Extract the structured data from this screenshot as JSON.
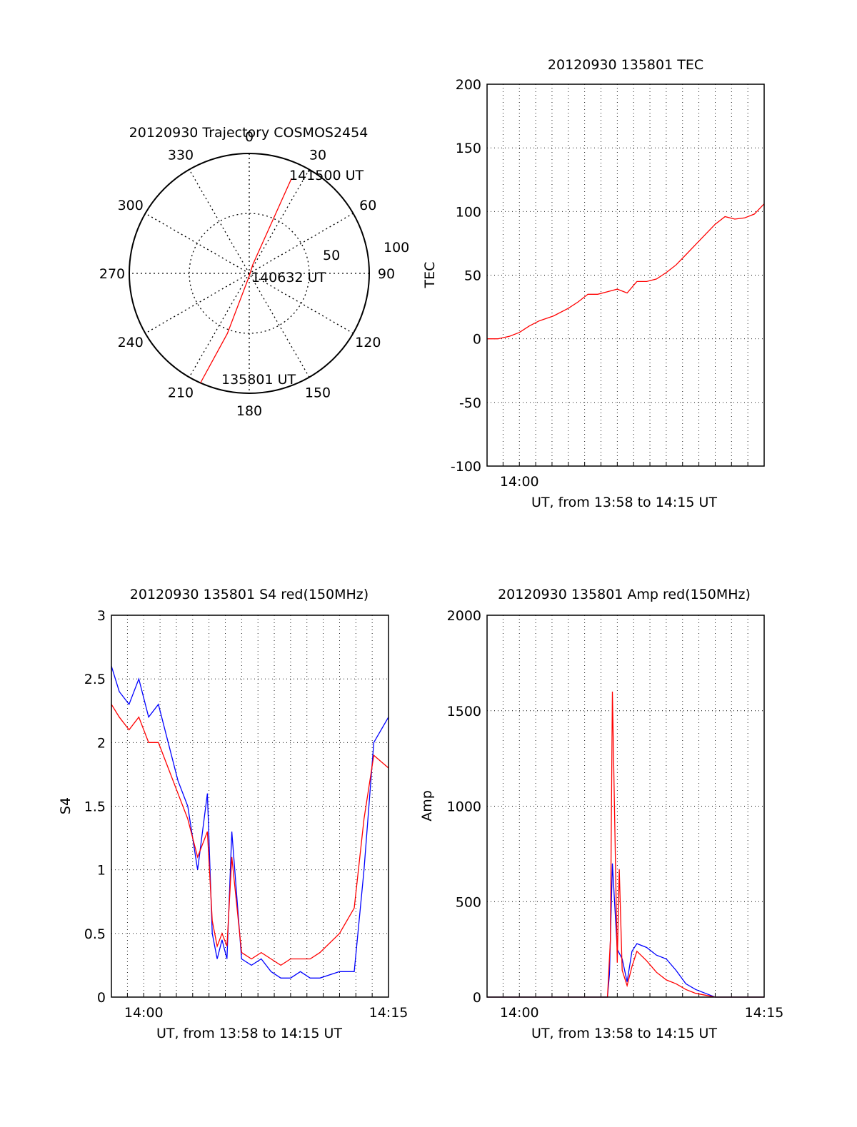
{
  "colors": {
    "red": "#ff0000",
    "blue": "#0000ff",
    "axis": "#000000",
    "grid": "#000000"
  },
  "chart_data": [
    {
      "id": "trajectory",
      "type": "polar",
      "title": "20120930 Trajectory COSMOS2454",
      "angle_labels": [
        "0",
        "30",
        "60",
        "90",
        "120",
        "150",
        "180",
        "210",
        "240",
        "270",
        "300",
        "330"
      ],
      "radial_labels": [
        "50",
        "100"
      ],
      "grid": true,
      "series": [
        {
          "color": "#ff0000",
          "points": [
            {
              "azimuth": 204,
              "elevation": 0
            },
            {
              "azimuth": 200,
              "elevation": 42
            },
            {
              "azimuth": 180,
              "elevation": 88
            },
            {
              "azimuth": 22,
              "elevation": 83
            },
            {
              "azimuth": 24,
              "elevation": 12
            }
          ]
        }
      ],
      "annotations": [
        "141500 UT",
        "140632 UT",
        "135801 UT"
      ]
    },
    {
      "id": "tec",
      "type": "line",
      "title": "20120930 135801 TEC",
      "ylabel": "TEC",
      "xlabel": "UT, from 13:58 to 14:15 UT",
      "xlim": [
        13.967,
        14.25
      ],
      "ylim": [
        -100,
        200
      ],
      "yticks": [
        200,
        150,
        100,
        50,
        0,
        -50,
        -100
      ],
      "xtick_labels": [
        "14:00"
      ],
      "grid": true,
      "series": [
        {
          "color": "#ff0000",
          "x": [
            13.967,
            13.978,
            13.99,
            14.0,
            14.01,
            14.02,
            14.035,
            14.05,
            14.06,
            14.07,
            14.08,
            14.09,
            14.1,
            14.11,
            14.12,
            14.13,
            14.14,
            14.15,
            14.16,
            14.17,
            14.18,
            14.19,
            14.2,
            14.21,
            14.22,
            14.23,
            14.24,
            14.25
          ],
          "y": [
            0,
            0,
            2,
            5,
            10,
            14,
            18,
            24,
            29,
            35,
            35,
            37,
            39,
            36,
            45,
            45,
            47,
            52,
            58,
            66,
            74,
            82,
            90,
            96,
            94,
            95,
            98,
            106
          ]
        }
      ]
    },
    {
      "id": "s4",
      "type": "line",
      "title": "20120930 135801 S4 red(150MHz)",
      "ylabel": "S4",
      "xlabel": "UT, from 13:58 to 14:15 UT",
      "xlim": [
        13.967,
        14.25
      ],
      "ylim": [
        0,
        3
      ],
      "yticks": [
        3,
        2.5,
        2,
        1.5,
        1,
        0.5,
        0
      ],
      "xtick_labels": [
        "14:00",
        "14:15"
      ],
      "grid": true,
      "series": [
        {
          "color": "#0000ff",
          "x": [
            13.967,
            13.975,
            13.985,
            13.995,
            14.005,
            14.015,
            14.025,
            14.035,
            14.045,
            14.055,
            14.065,
            14.07,
            14.075,
            14.08,
            14.085,
            14.09,
            14.1,
            14.11,
            14.12,
            14.13,
            14.14,
            14.15,
            14.16,
            14.17,
            14.18,
            14.2,
            14.215,
            14.225,
            14.235,
            14.25
          ],
          "y": [
            2.6,
            2.4,
            2.3,
            2.5,
            2.2,
            2.3,
            2.0,
            1.7,
            1.5,
            1.0,
            1.6,
            0.5,
            0.3,
            0.45,
            0.3,
            1.3,
            0.3,
            0.25,
            0.3,
            0.2,
            0.15,
            0.15,
            0.2,
            0.15,
            0.15,
            0.2,
            0.2,
            1.0,
            2.0,
            2.2
          ]
        },
        {
          "color": "#ff0000",
          "x": [
            13.967,
            13.975,
            13.985,
            13.995,
            14.005,
            14.015,
            14.025,
            14.035,
            14.045,
            14.055,
            14.065,
            14.07,
            14.075,
            14.08,
            14.085,
            14.09,
            14.1,
            14.11,
            14.12,
            14.13,
            14.14,
            14.15,
            14.16,
            14.17,
            14.18,
            14.2,
            14.215,
            14.225,
            14.235,
            14.25
          ],
          "y": [
            2.3,
            2.2,
            2.1,
            2.2,
            2.0,
            2.0,
            1.8,
            1.6,
            1.4,
            1.1,
            1.3,
            0.6,
            0.4,
            0.5,
            0.4,
            1.1,
            0.35,
            0.3,
            0.35,
            0.3,
            0.25,
            0.3,
            0.3,
            0.3,
            0.35,
            0.5,
            0.7,
            1.4,
            1.9,
            1.8
          ]
        }
      ]
    },
    {
      "id": "amp",
      "type": "line",
      "title": "20120930 135801 Amp red(150MHz)",
      "ylabel": "Amp",
      "xlabel": "UT, from 13:58 to 14:15 UT",
      "xlim": [
        13.967,
        14.25
      ],
      "ylim": [
        0,
        2000
      ],
      "yticks": [
        2000,
        1500,
        1000,
        500,
        0
      ],
      "xtick_labels": [
        "14:00",
        "14:15"
      ],
      "grid": true,
      "series": [
        {
          "color": "#0000ff",
          "x": [
            13.967,
            14.08,
            14.09,
            14.092,
            14.095,
            14.1,
            14.105,
            14.11,
            14.115,
            14.12,
            14.13,
            14.14,
            14.15,
            14.16,
            14.17,
            14.18,
            14.19,
            14.2,
            14.25
          ],
          "y": [
            0,
            0,
            0,
            120,
            700,
            250,
            200,
            80,
            240,
            280,
            260,
            220,
            200,
            140,
            70,
            40,
            20,
            0,
            0
          ]
        },
        {
          "color": "#ff0000",
          "x": [
            13.967,
            14.08,
            14.09,
            14.093,
            14.095,
            14.1,
            14.102,
            14.105,
            14.11,
            14.115,
            14.12,
            14.13,
            14.14,
            14.15,
            14.16,
            14.17,
            14.18,
            14.19,
            14.2,
            14.25
          ],
          "y": [
            0,
            0,
            0,
            300,
            1600,
            180,
            670,
            140,
            60,
            160,
            240,
            190,
            130,
            90,
            70,
            40,
            20,
            10,
            0,
            0
          ]
        }
      ]
    }
  ]
}
